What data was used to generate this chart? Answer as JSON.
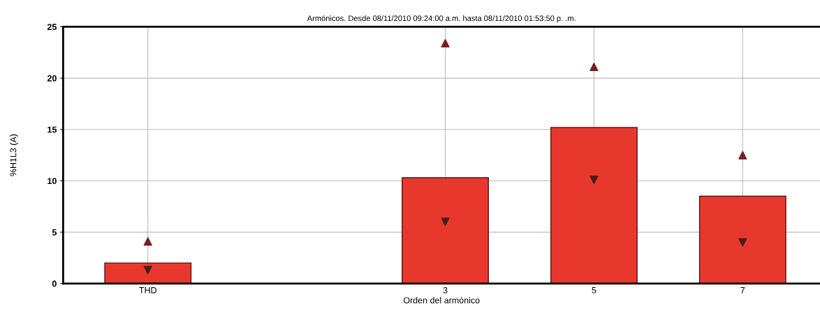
{
  "chart_data": {
    "type": "bar",
    "title": "Armónicos. Desde 08/11/2010 09:24:00 a.m. hasta 08/11/2010 01:53:50 p. .m.",
    "xlabel": "Orden del armónico",
    "ylabel": "%H1L3 (A)",
    "categories": [
      "THD",
      null,
      "3",
      "5",
      "7"
    ],
    "series": [
      {
        "color": "#e8382d",
        "values": [
          2.0,
          null,
          10.3,
          15.2,
          8.5
        ]
      },
      {
        "type": "scatter",
        "marker": "triangle",
        "color": "#7a1c24",
        "values": [
          4.1,
          null,
          23.4,
          21.1,
          12.5
        ]
      },
      {
        "type": "scatter",
        "marker": "triangle_down",
        "color": "#4a1c1c",
        "values": [
          1.3,
          null,
          6.0,
          10.1,
          4.0
        ]
      }
    ],
    "ylim": [
      0,
      25
    ],
    "yticks": [
      0,
      5,
      10,
      15,
      20,
      25
    ],
    "grid": true,
    "legend": false
  }
}
